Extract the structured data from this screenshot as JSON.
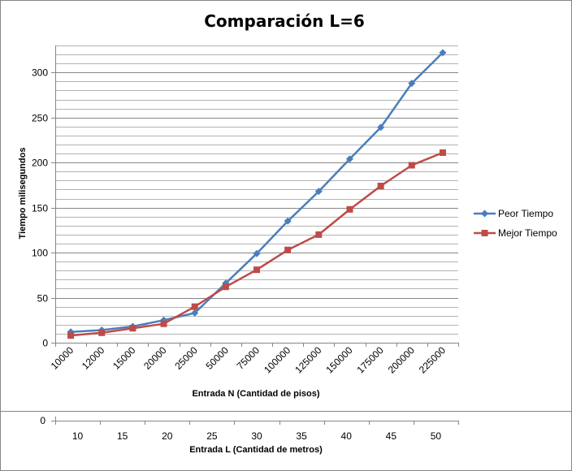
{
  "chart_data": {
    "type": "line",
    "title": "Comparación L=6",
    "xlabel": "Entrada N (Cantidad de pisos)",
    "ylabel": "Tiempo milisegundos",
    "categories": [
      "10000",
      "12000",
      "15000",
      "20000",
      "25000",
      "50000",
      "75000",
      "100000",
      "125000",
      "150000",
      "175000",
      "200000",
      "225000"
    ],
    "ylim": [
      0,
      330
    ],
    "yticks": [
      0,
      50,
      100,
      150,
      200,
      250,
      300
    ],
    "grid": "horizontal",
    "legend": "right",
    "series": [
      {
        "name": "Peor Tiempo",
        "color": "#4a7ebb",
        "marker": "diamond",
        "values": [
          12,
          14,
          18,
          25,
          33,
          66,
          99,
          135,
          168,
          204,
          239,
          288,
          322
        ]
      },
      {
        "name": "Mejor Tiempo",
        "color": "#be4b48",
        "marker": "square",
        "values": [
          8,
          11,
          16,
          21,
          40,
          62,
          81,
          103,
          120,
          148,
          174,
          197,
          211
        ]
      }
    ],
    "secondary_axis": {
      "xlabel": "Entrada L (Cantidad de metros)",
      "categories": [
        "10",
        "15",
        "20",
        "25",
        "30",
        "35",
        "40",
        "45",
        "50"
      ],
      "yticks": [
        0
      ]
    }
  }
}
